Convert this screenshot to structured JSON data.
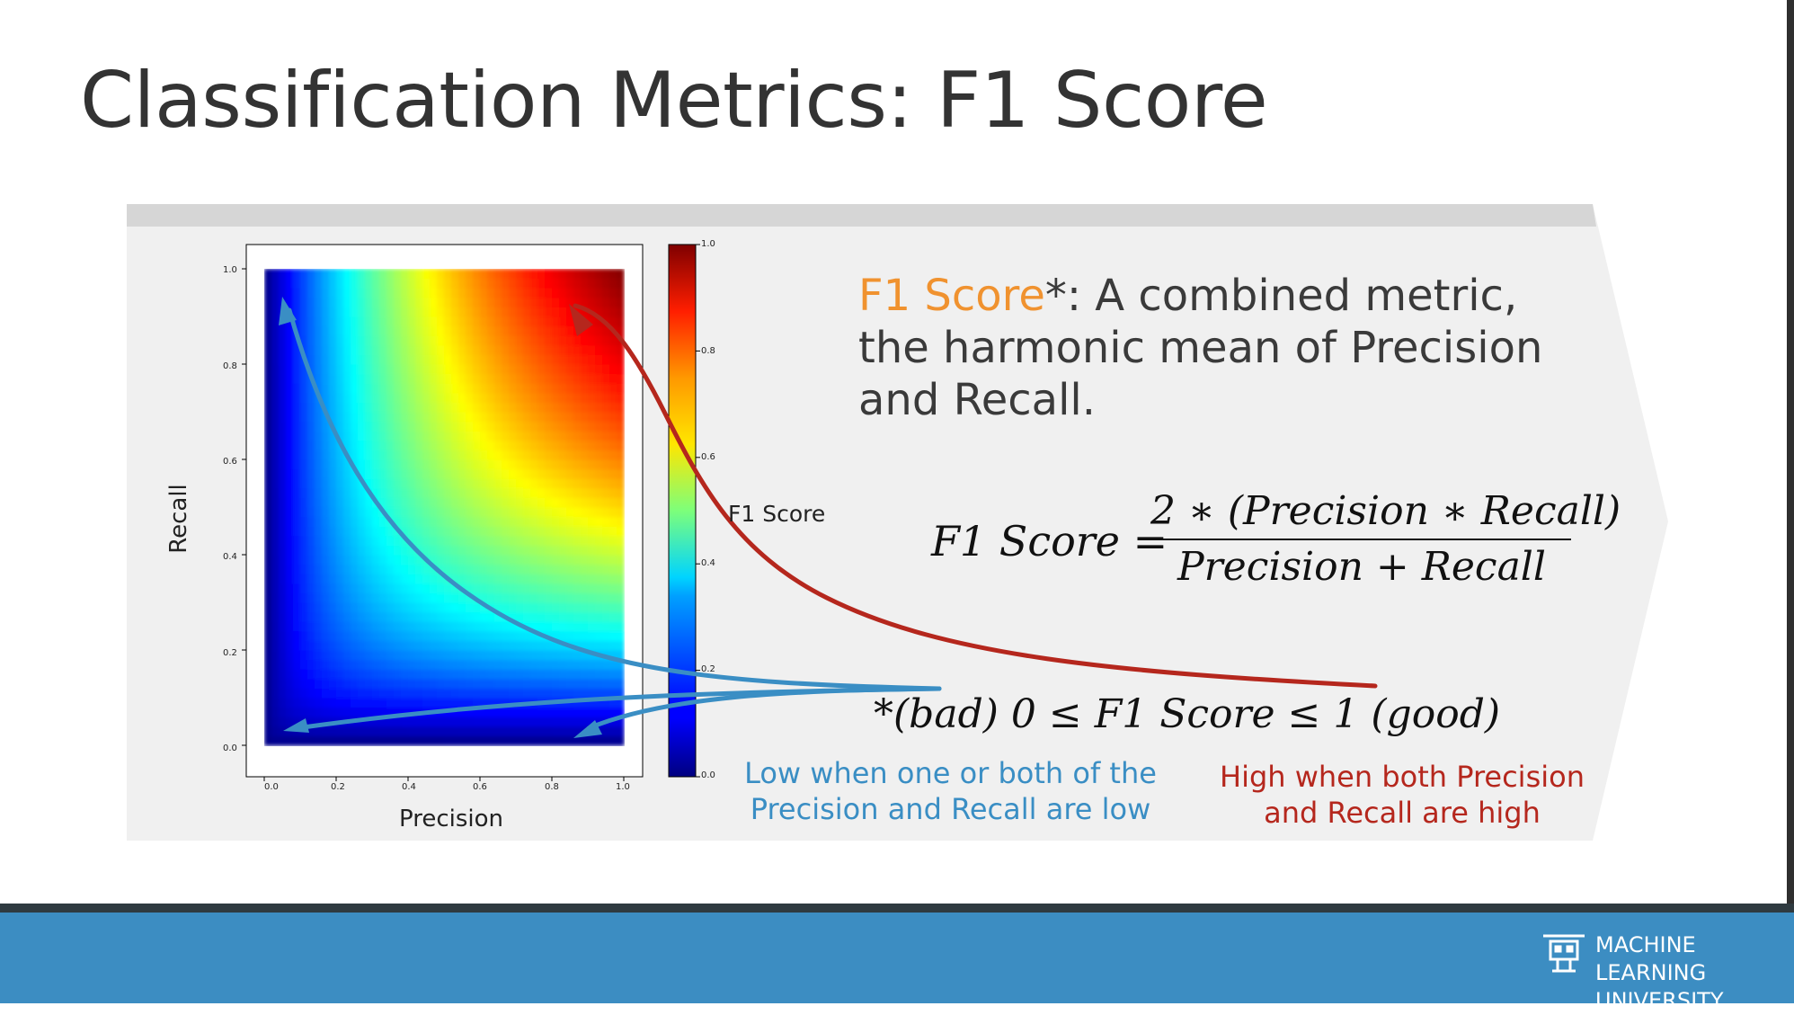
{
  "slide": {
    "title": "Classification Metrics: F1 Score"
  },
  "definition": {
    "term": "F1 Score",
    "asterisk": "*",
    "text": ": A combined metric, the harmonic mean of Precision and Recall."
  },
  "formula": {
    "lhs": "F1 Score =",
    "numerator": "2 ∗ (Precision ∗ Recall)",
    "denominator": "Precision + Recall"
  },
  "range_note": "*(bad) 0 ≤ F1 Score ≤ 1 (good)",
  "low_caption": [
    "Low when one or both of the",
    "Precision and Recall are low"
  ],
  "high_caption": [
    "High when both Precision",
    "and Recall are high"
  ],
  "colors": {
    "accent_orange": "#f0922f",
    "low_blue": "#3a8ec4",
    "high_red": "#b5271d",
    "footer_blue": "#3c8dc2"
  },
  "chart_data": {
    "type": "heatmap",
    "function": "2*p*r/(p+r)",
    "xlabel": "Precision",
    "ylabel": "Recall",
    "xlim": [
      0.0,
      1.0
    ],
    "ylim": [
      0.0,
      1.0
    ],
    "x_ticks": [
      "0.0",
      "0.2",
      "0.4",
      "0.6",
      "0.8",
      "1.0"
    ],
    "y_ticks": [
      "0.0",
      "0.2",
      "0.4",
      "0.6",
      "0.8",
      "1.0"
    ],
    "colorbar": {
      "label": "F1 Score",
      "ticks": [
        "0.0",
        "0.2",
        "0.4",
        "0.6",
        "0.8",
        "1.0"
      ],
      "range": [
        0.0,
        1.0
      ],
      "colormap": "jet"
    }
  },
  "footer": {
    "brand_line1": "MACHINE LEARNING",
    "brand_line2": "UNIVERSITY",
    "logo_icon": "robot-icon"
  }
}
